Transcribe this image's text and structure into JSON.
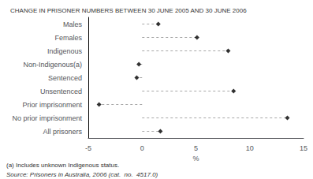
{
  "chart_data": {
    "type": "dot",
    "title": "CHANGE IN PRISONER NUMBERS BETWEEN 30 JUNE 2005 AND 30 JUNE 2006",
    "categories": [
      "Males",
      "Females",
      "Indigenous",
      "Non-Indigenous(a)",
      "Sentenced",
      "Unsentenced",
      "Prior imprisonment",
      "No prior imprisonment",
      "All prisoners"
    ],
    "values": [
      1.5,
      5.1,
      8.0,
      -0.3,
      -0.5,
      8.5,
      -4.0,
      13.5,
      1.7
    ],
    "orientation": "horizontal",
    "xlim": [
      -5,
      15
    ],
    "xticks": [
      -5,
      0,
      5,
      10,
      15
    ],
    "xlabel": "%",
    "color": "#000000",
    "marker": "diamond",
    "line_style": "dashed",
    "grid": false,
    "annotations": [
      "(a) Includes unknown Indigenous status.",
      "Source: Prisoners in Australia, 2006 (cat.  no.  4517.0)"
    ]
  }
}
